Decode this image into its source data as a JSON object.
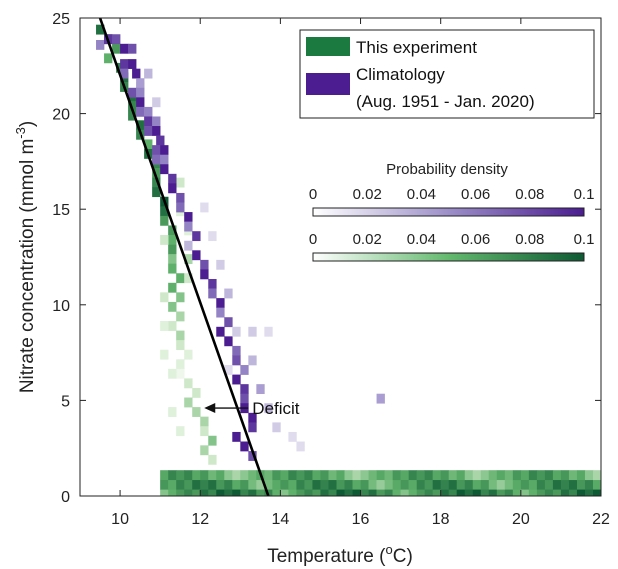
{
  "chart_data": {
    "type": "heatmap",
    "xlabel": "Temperature (",
    "xlabel_sup": "o",
    "xlabel_end": "C)",
    "ylabel": "Nitrate concentration (mmol m",
    "ylabel_sup": "-3",
    "ylabel_end": ")",
    "xlim": [
      9,
      22
    ],
    "ylim": [
      0,
      25
    ],
    "xticks": [
      "10",
      "12",
      "14",
      "16",
      "18",
      "20",
      "22"
    ],
    "yticks": [
      "0",
      "5",
      "10",
      "15",
      "20",
      "25"
    ],
    "series": [
      {
        "name": "This experiment",
        "color": "#1a7a40"
      },
      {
        "name": "Climatology",
        "name_line2": "(Aug. 1951 - Jan. 2020)",
        "color": "#4b1d91"
      }
    ],
    "colorbar_title": "Probability density",
    "colorbar_ticks": [
      "0",
      "0.02",
      "0.04",
      "0.06",
      "0.08",
      "0.1"
    ],
    "colorbar_range": [
      0,
      0.1
    ],
    "cell_size": {
      "temperature": 0.2,
      "nitrate": 0.5
    },
    "fit_line": {
      "x": [
        9.5,
        13.7
      ],
      "y": [
        25,
        0
      ]
    },
    "annotation": {
      "text": "Deficit",
      "arrow_to": {
        "x": 12.1,
        "y": 4.6
      },
      "text_at": {
        "x": 13.0,
        "y": 4.6
      }
    },
    "climatology_cells": [
      [
        23.6,
        9.5,
        0.06
      ],
      [
        23.9,
        9.7,
        0.09
      ],
      [
        23.9,
        9.9,
        0.08
      ],
      [
        23.4,
        10.1,
        0.1
      ],
      [
        23.4,
        10.3,
        0.08
      ],
      [
        22.6,
        10.1,
        0.09
      ],
      [
        22.6,
        10.3,
        0.1
      ],
      [
        22.1,
        10.1,
        0.07
      ],
      [
        22.1,
        10.4,
        0.1
      ],
      [
        21.6,
        10.5,
        0.05
      ],
      [
        21.1,
        10.3,
        0.08
      ],
      [
        21.1,
        10.5,
        0.06
      ],
      [
        20.6,
        10.5,
        0.1
      ],
      [
        20.1,
        10.5,
        0.07
      ],
      [
        20.1,
        10.7,
        0.06
      ],
      [
        19.6,
        10.7,
        0.09
      ],
      [
        19.6,
        10.9,
        0.06
      ],
      [
        19.1,
        10.7,
        0.08
      ],
      [
        19.1,
        10.9,
        0.1
      ],
      [
        18.6,
        11.0,
        0.09
      ],
      [
        18.1,
        10.9,
        0.08
      ],
      [
        18.1,
        11.1,
        0.1
      ],
      [
        17.6,
        10.9,
        0.07
      ],
      [
        17.6,
        11.1,
        0.06
      ],
      [
        17.1,
        11.1,
        0.1
      ],
      [
        16.6,
        11.3,
        0.09
      ],
      [
        16.1,
        11.3,
        0.1
      ],
      [
        15.6,
        11.5,
        0.08
      ],
      [
        15.1,
        11.5,
        0.07
      ],
      [
        14.6,
        11.7,
        0.1
      ],
      [
        14.1,
        11.7,
        0.06
      ],
      [
        13.6,
        11.9,
        0.09
      ],
      [
        13.1,
        11.7,
        0.04
      ],
      [
        12.6,
        11.9,
        0.1
      ],
      [
        12.1,
        12.1,
        0.08
      ],
      [
        11.6,
        12.1,
        0.1
      ],
      [
        11.1,
        12.3,
        0.09
      ],
      [
        10.6,
        12.3,
        0.07
      ],
      [
        10.1,
        12.5,
        0.1
      ],
      [
        9.6,
        12.5,
        0.06
      ],
      [
        9.1,
        12.7,
        0.08
      ],
      [
        8.6,
        12.5,
        0.1
      ],
      [
        8.1,
        12.7,
        0.1
      ],
      [
        7.6,
        12.9,
        0.07
      ],
      [
        7.1,
        12.9,
        0.08
      ],
      [
        6.6,
        13.1,
        0.06
      ],
      [
        6.1,
        12.9,
        0.1
      ],
      [
        5.6,
        13.1,
        0.09
      ],
      [
        5.1,
        13.1,
        0.08
      ],
      [
        4.6,
        13.1,
        0.1
      ],
      [
        4.1,
        13.3,
        0.1
      ],
      [
        3.6,
        13.3,
        0.09
      ],
      [
        3.1,
        12.9,
        0.1
      ],
      [
        2.6,
        13.1,
        0.1
      ],
      [
        2.1,
        13.3,
        0.08
      ],
      [
        8.6,
        12.9,
        0.03
      ],
      [
        8.6,
        13.3,
        0.03
      ],
      [
        8.6,
        13.7,
        0.02
      ],
      [
        7.1,
        13.3,
        0.04
      ],
      [
        6.6,
        12.7,
        0.02
      ],
      [
        5.6,
        13.5,
        0.05
      ],
      [
        4.6,
        13.7,
        0.04
      ],
      [
        3.6,
        13.9,
        0.03
      ],
      [
        3.1,
        14.3,
        0.02
      ],
      [
        2.6,
        14.5,
        0.02
      ],
      [
        5.1,
        16.5,
        0.05
      ],
      [
        15.1,
        12.1,
        0.02
      ],
      [
        13.6,
        12.3,
        0.02
      ],
      [
        12.1,
        12.5,
        0.03
      ],
      [
        10.6,
        12.7,
        0.04
      ],
      [
        20.6,
        10.9,
        0.03
      ],
      [
        22.1,
        10.7,
        0.04
      ]
    ],
    "experiment_cells": [
      [
        24.4,
        9.5,
        0.09
      ],
      [
        23.9,
        9.7,
        0.08
      ],
      [
        23.4,
        9.9,
        0.07
      ],
      [
        22.9,
        9.7,
        0.06
      ],
      [
        22.4,
        10.0,
        0.08
      ],
      [
        21.9,
        10.1,
        0.09
      ],
      [
        21.4,
        10.1,
        0.08
      ],
      [
        20.9,
        10.3,
        0.09
      ],
      [
        20.4,
        10.3,
        0.08
      ],
      [
        19.9,
        10.3,
        0.08
      ],
      [
        19.4,
        10.5,
        0.09
      ],
      [
        18.9,
        10.5,
        0.08
      ],
      [
        18.4,
        10.7,
        0.06
      ],
      [
        17.9,
        10.7,
        0.09
      ],
      [
        17.4,
        10.9,
        0.08
      ],
      [
        16.9,
        10.9,
        0.07
      ],
      [
        16.4,
        10.9,
        0.08
      ],
      [
        15.9,
        10.9,
        0.09
      ],
      [
        15.4,
        11.1,
        0.1
      ],
      [
        14.9,
        11.1,
        0.09
      ],
      [
        14.4,
        11.1,
        0.07
      ],
      [
        13.9,
        11.3,
        0.07
      ],
      [
        13.4,
        11.3,
        0.06
      ],
      [
        12.9,
        11.3,
        0.07
      ],
      [
        12.4,
        11.3,
        0.05
      ],
      [
        11.9,
        11.3,
        0.06
      ],
      [
        11.4,
        11.5,
        0.06
      ],
      [
        10.9,
        11.3,
        0.06
      ],
      [
        10.4,
        11.5,
        0.05
      ],
      [
        9.9,
        11.3,
        0.05
      ],
      [
        9.4,
        11.5,
        0.04
      ],
      [
        8.9,
        11.3,
        0.03
      ],
      [
        8.4,
        11.5,
        0.04
      ],
      [
        7.9,
        11.5,
        0.03
      ],
      [
        7.4,
        11.7,
        0.02
      ],
      [
        6.9,
        11.5,
        0.02
      ],
      [
        6.4,
        11.5,
        0.01
      ],
      [
        5.9,
        11.7,
        0.03
      ],
      [
        5.4,
        11.9,
        0.03
      ],
      [
        4.9,
        11.7,
        0.04
      ],
      [
        4.4,
        11.9,
        0.04
      ],
      [
        3.9,
        12.1,
        0.04
      ],
      [
        3.4,
        12.1,
        0.03
      ],
      [
        2.9,
        12.3,
        0.05
      ],
      [
        2.4,
        12.1,
        0.04
      ],
      [
        1.9,
        12.3,
        0.03
      ],
      [
        13.4,
        11.1,
        0.03
      ],
      [
        12.4,
        11.7,
        0.04
      ],
      [
        11.4,
        11.7,
        0.03
      ],
      [
        10.4,
        11.1,
        0.03
      ],
      [
        8.9,
        11.1,
        0.02
      ],
      [
        7.4,
        11.1,
        0.02
      ],
      [
        6.4,
        11.3,
        0.02
      ],
      [
        23.4,
        10.2,
        0.03
      ],
      [
        21.4,
        10.5,
        0.03
      ],
      [
        16.4,
        11.5,
        0.03
      ],
      [
        14.9,
        11.5,
        0.02
      ],
      [
        13.9,
        11.7,
        0.02
      ],
      [
        4.4,
        11.3,
        0.02
      ],
      [
        3.4,
        11.5,
        0.02
      ]
    ],
    "bottom_band": {
      "rows": [
        0.1,
        0.6,
        1.1
      ],
      "x_from": 11.1,
      "x_to": 21.9,
      "values": [
        0.05,
        0.06,
        0.07,
        0.08,
        0.07,
        0.09,
        0.08,
        0.1,
        0.09,
        0.1,
        0.08,
        0.09,
        0.07,
        0.08,
        0.06
      ]
    }
  }
}
